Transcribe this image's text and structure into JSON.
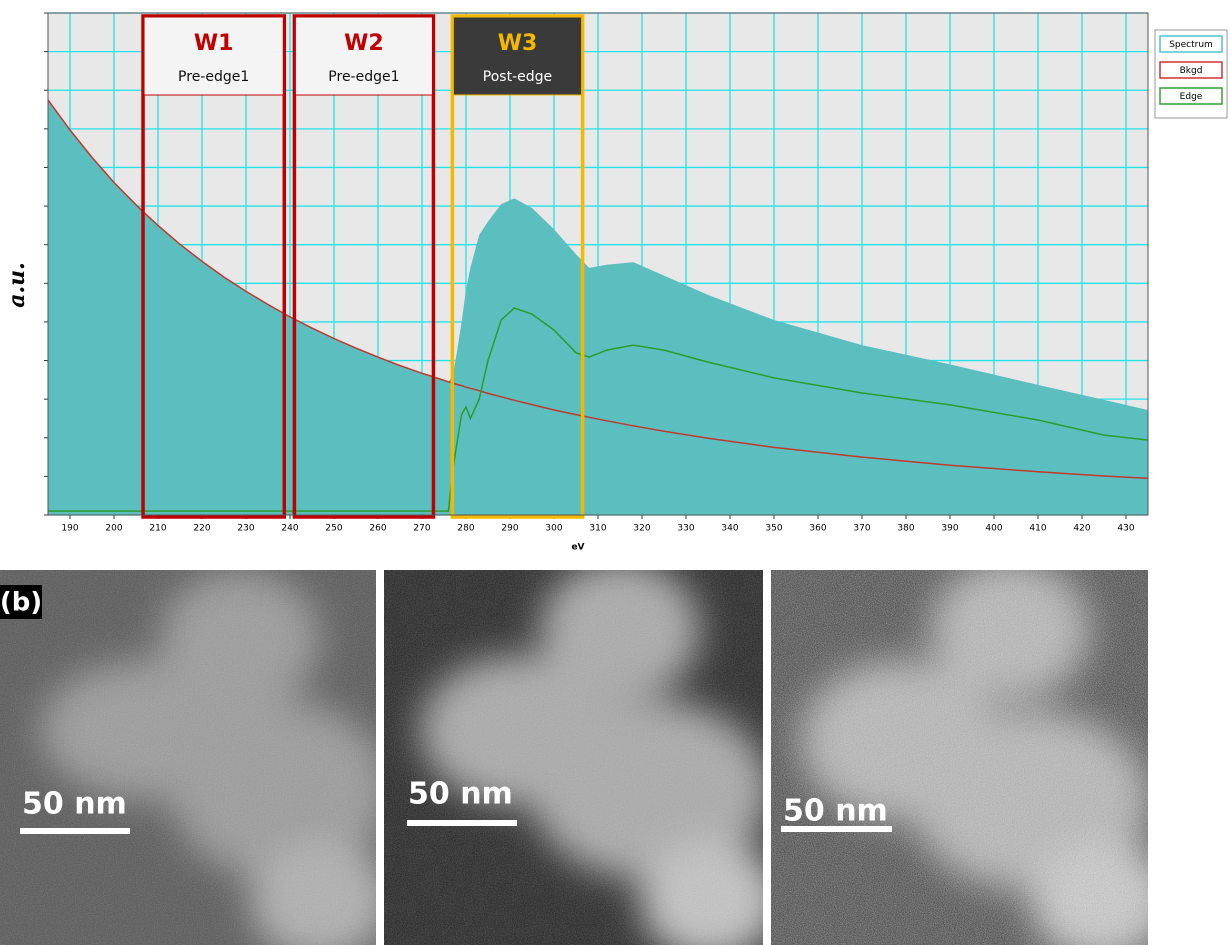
{
  "chart_data": {
    "type": "area",
    "xlabel": "eV",
    "ylabel": "a.u.",
    "x": [
      185,
      190,
      195,
      200,
      206,
      210,
      215,
      220,
      225,
      230,
      235,
      240,
      245,
      250,
      255,
      260,
      265,
      270,
      272,
      276,
      277,
      278,
      279,
      280,
      281,
      283,
      285,
      288,
      291,
      295,
      300,
      305,
      308,
      312,
      318,
      325,
      335,
      350,
      370,
      390,
      410,
      425,
      435
    ],
    "series": [
      {
        "name": "Spectrum",
        "color": "#5bbfbf",
        "border": "#4cc3d0",
        "values": [
          10.75,
          9.97,
          9.26,
          8.61,
          7.92,
          7.5,
          7.01,
          6.57,
          6.16,
          5.79,
          5.45,
          5.13,
          4.84,
          4.57,
          4.32,
          4.09,
          3.87,
          3.67,
          3.6,
          3.45,
          3.6,
          4.27,
          5.0,
          5.83,
          6.4,
          7.25,
          7.6,
          8.05,
          8.2,
          7.95,
          7.4,
          6.75,
          6.4,
          6.48,
          6.55,
          6.2,
          5.7,
          5.05,
          4.4,
          3.9,
          3.37,
          2.98,
          2.72
        ]
      },
      {
        "name": "Bkgd",
        "color": "#c0392b",
        "border": "#d03030",
        "values": [
          10.75,
          9.97,
          9.26,
          8.61,
          7.92,
          7.5,
          7.01,
          6.57,
          6.16,
          5.79,
          5.45,
          5.13,
          4.84,
          4.57,
          4.32,
          4.09,
          3.87,
          3.67,
          3.6,
          3.45,
          3.42,
          3.38,
          3.35,
          3.31,
          3.28,
          3.22,
          3.15,
          3.06,
          2.97,
          2.86,
          2.72,
          2.6,
          2.53,
          2.44,
          2.31,
          2.17,
          1.99,
          1.75,
          1.5,
          1.29,
          1.12,
          1.01,
          0.95
        ]
      },
      {
        "name": "Edge",
        "color": "#2a9d2a",
        "border": "#30a030",
        "values": [
          0.1,
          0.1,
          0.1,
          0.1,
          0.1,
          0.1,
          0.1,
          0.1,
          0.1,
          0.1,
          0.1,
          0.1,
          0.1,
          0.1,
          0.1,
          0.1,
          0.1,
          0.1,
          0.1,
          0.1,
          1.17,
          1.9,
          2.6,
          2.8,
          2.5,
          3.0,
          4.0,
          5.05,
          5.36,
          5.2,
          4.79,
          4.2,
          4.09,
          4.27,
          4.4,
          4.27,
          3.96,
          3.55,
          3.16,
          2.85,
          2.46,
          2.07,
          1.94
        ]
      }
    ],
    "xlim": [
      185,
      435
    ],
    "xticks": [
      190,
      200,
      210,
      220,
      230,
      240,
      250,
      260,
      270,
      280,
      290,
      300,
      310,
      320,
      330,
      340,
      350,
      360,
      370,
      380,
      390,
      400,
      410,
      420,
      430
    ],
    "ylim": [
      0,
      13
    ],
    "yticks": [
      0,
      1,
      2,
      3,
      4,
      5,
      6,
      7,
      8,
      9,
      10,
      11,
      12,
      13
    ],
    "grid": true,
    "grid_color": "#22e2ea",
    "legend": "right",
    "windows": [
      {
        "label": "W1",
        "sublabel": "Pre-edge1",
        "xlim": [
          206.6,
          238.7
        ],
        "color": "#c00000"
      },
      {
        "label": "W2",
        "sublabel": "Pre-edge1",
        "xlim": [
          241,
          272.6
        ],
        "color": "#c00000"
      },
      {
        "label": "W3",
        "sublabel": "Post-edge",
        "xlim": [
          276.9,
          306.5
        ],
        "color": "#f5b800"
      }
    ]
  },
  "images": {
    "panel_label": "(b)",
    "scale_bars": [
      "50 nm",
      "50 nm",
      "50 nm"
    ]
  }
}
